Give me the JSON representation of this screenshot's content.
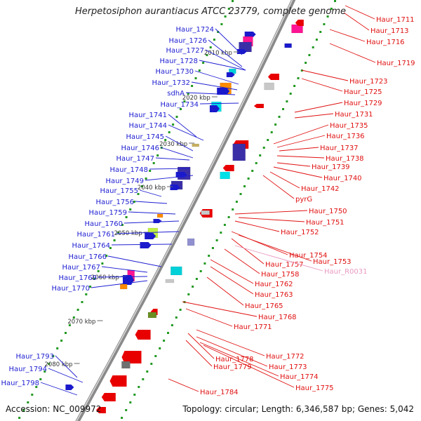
{
  "title": "Herpetosiphon aurantiacus ATCC 23779, complete genome",
  "footer": {
    "accession": "Accession: NC_009972",
    "summary": "Topology: circular; Length: 6,346,587 bp; Genes: 5,042"
  },
  "colors": {
    "backbone": "#999999",
    "left_label": "#1e1ed2",
    "right_label": "#e01010",
    "rna_label": "#e899c0",
    "tick": "#229922"
  },
  "kbp_ticks": [
    "2010 kbp",
    "2020 kbp",
    "2030 kbp",
    "2040 kbp",
    "2050 kbp",
    "2060 kbp",
    "2070 kbp",
    "2080 kbp"
  ],
  "left_labels": [
    "Haur_1724",
    "Haur_1726",
    "Haur_1727",
    "Haur_1728",
    "Haur_1730",
    "Haur_1732",
    "sdhA",
    "Haur_1734",
    "Haur_1741",
    "Haur_1744",
    "Haur_1745",
    "Haur_1746",
    "Haur_1747",
    "Haur_1748",
    "Haur_1749",
    "Haur_1755",
    "Haur_1756",
    "Haur_1759",
    "Haur_1760",
    "Haur_1761",
    "Haur_1764",
    "Haur_1766",
    "Haur_1767",
    "Haur_1769",
    "Haur_1770",
    "Haur_1793",
    "Haur_1794",
    "Haur_1798"
  ],
  "right_labels": [
    "Haur_1711",
    "Haur_1713",
    "Haur_1716",
    "Haur_1719",
    "Haur_1723",
    "Haur_1725",
    "Haur_1729",
    "Haur_1731",
    "Haur_1735",
    "Haur_1736",
    "Haur_1737",
    "Haur_1738",
    "Haur_1739",
    "Haur_1740",
    "Haur_1742",
    "pyrG",
    "Haur_1750",
    "Haur_1751",
    "Haur_1752",
    "Haur_1754",
    "Haur_1753",
    "Haur_1757",
    "Haur_R0031",
    "Haur_1758",
    "Haur_1762",
    "Haur_1763",
    "Haur_1765",
    "Haur_1768",
    "Haur_1771",
    "Haur_1772",
    "Haur_1778",
    "Haur_1773",
    "Haur_1779",
    "Haur_1774",
    "Haur_1775",
    "Haur_1784"
  ]
}
